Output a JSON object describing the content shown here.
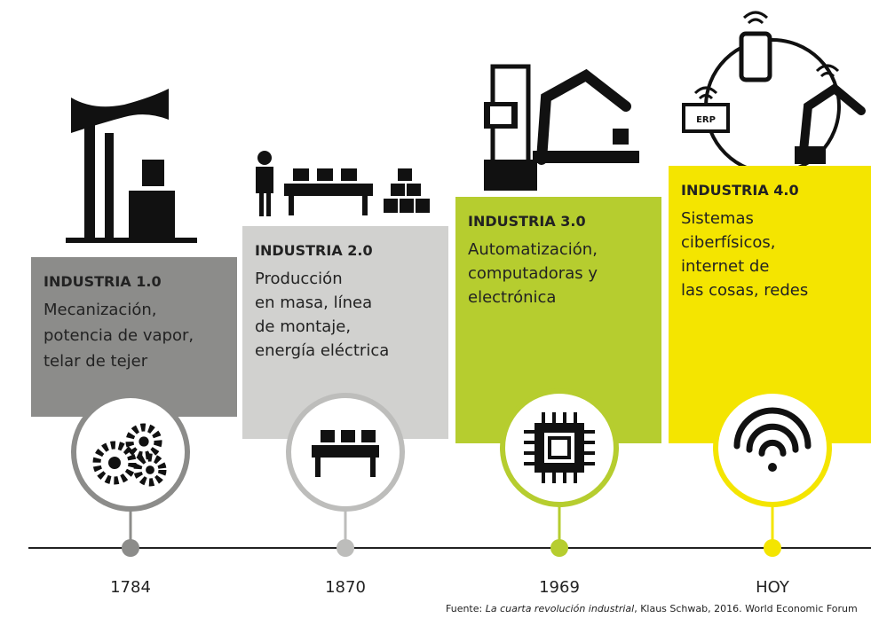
{
  "columns": [
    {
      "title": "INDUSTRIA 1.0",
      "lines": [
        "Mecanización,",
        "potencia de vapor,",
        "telar de tejer"
      ],
      "year": "1784"
    },
    {
      "title": "INDUSTRIA 2.0",
      "lines": [
        "Producción",
        "en masa, línea",
        "de montaje,",
        "energía eléctrica"
      ],
      "year": "1870"
    },
    {
      "title": "INDUSTRIA 3.0",
      "lines": [
        "Automatización,",
        "computadoras y",
        "electrónica"
      ],
      "year": "1969"
    },
    {
      "title": "INDUSTRIA 4.0",
      "lines": [
        "Sistemas",
        "ciberfísicos,",
        "internet de",
        "las cosas, redes"
      ],
      "year": "HOY"
    }
  ],
  "icon_label": "ERP",
  "source": {
    "prefix": "Fuente: ",
    "title": "La cuarta revolución industrial",
    "suffix": ", Klaus Schwab, 2016. World Economic Forum"
  }
}
